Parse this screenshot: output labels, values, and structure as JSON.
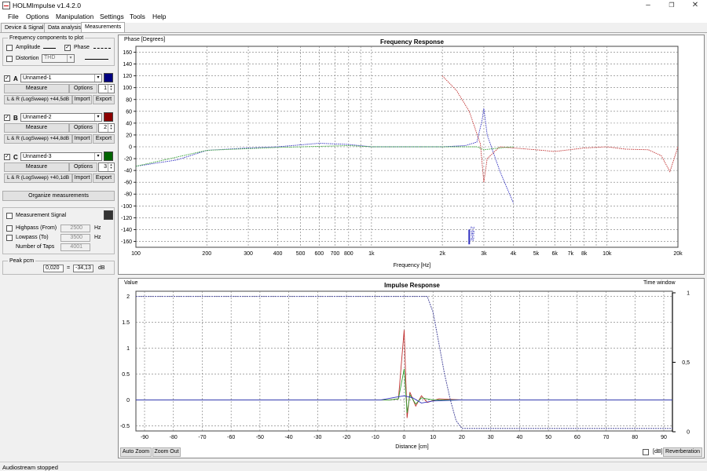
{
  "window": {
    "title": "HOLMImpulse  v1.4.2.0",
    "min": "–",
    "restore": "❐",
    "close": "✕"
  },
  "menu": [
    "File",
    "Options",
    "Manipulation",
    "Settings",
    "Tools",
    "Help"
  ],
  "tabs": [
    "Device & Signal",
    "Data analysis",
    "Measurements"
  ],
  "freq_components": {
    "title": "Frequency components to plot",
    "amplitude": "Amplitude",
    "amplitude_checked": false,
    "phase": "Phase",
    "phase_checked": true,
    "distortion": "Distortion",
    "distortion_checked": false,
    "distortion_value": "THD"
  },
  "measurements": [
    {
      "letter": "A",
      "checked": true,
      "name": "Unnamed-1",
      "color": "#000080",
      "measure": "Measure",
      "options": "Options",
      "spin": "1",
      "info": "L & R (LogSweep) +44,5dB",
      "import": "Import",
      "export": "Export"
    },
    {
      "letter": "B",
      "checked": true,
      "name": "Unnamed-2",
      "color": "#8b0000",
      "measure": "Measure",
      "options": "Options",
      "spin": "2",
      "info": "L & R (LogSweep) +44,8dB",
      "import": "Import",
      "export": "Export"
    },
    {
      "letter": "C",
      "checked": true,
      "name": "Unnamed-3",
      "color": "#006400",
      "measure": "Measure",
      "options": "Options",
      "spin": "3",
      "info": "L & R (LogSweep) +40,1dB",
      "import": "Import",
      "export": "Export"
    }
  ],
  "organize": "Organize measurements",
  "signal": {
    "label": "Measurement Signal",
    "checked": false,
    "color": "#333333",
    "highpass": "Highpass (From)",
    "highpass_value": "2500",
    "highpass_unit": "Hz",
    "lowpass": "Lowpass (To)",
    "lowpass_value": "3500",
    "lowpass_unit": "Hz",
    "taps": "Number of Taps",
    "taps_value": "4001"
  },
  "peak": {
    "label": "Peak pcm",
    "value": "0,020",
    "eq": "=",
    "db": "-34,13",
    "unit": "dB"
  },
  "freq_chart": {
    "title": "Frequency Response",
    "ylabel": "Phase [Degrees]",
    "xlabel": "Frequency [Hz]",
    "yticks": [
      "160",
      "140",
      "120",
      "100",
      "80",
      "60",
      "40",
      "20",
      "0",
      "-20",
      "-40",
      "-60",
      "-80",
      "-100",
      "-120",
      "-140",
      "-160"
    ],
    "xticks": [
      "100",
      "200",
      "300",
      "400",
      "500",
      "600",
      "700",
      "800",
      "1k",
      "2k",
      "3k",
      "4k",
      "5k",
      "6k",
      "7k",
      "8k",
      "10k",
      "20k"
    ],
    "marker": "2.6kHz"
  },
  "impulse_chart": {
    "title": "Impulse Response",
    "ylabel": "Value",
    "xlabel": "Distance [cm]",
    "time_window": "Time window",
    "yticks": [
      "2",
      "1.5",
      "1",
      "0.5",
      "0",
      "-0.5"
    ],
    "xticks": [
      "-90",
      "-80",
      "-70",
      "-60",
      "-50",
      "-40",
      "-30",
      "-20",
      "-10",
      "0",
      "10",
      "20",
      "30",
      "40",
      "50",
      "60",
      "70",
      "80",
      "90"
    ],
    "rticks": [
      "1",
      "0,5",
      "0"
    ],
    "auto_zoom": "Auto Zoom",
    "zoom_out": "Zoom Out",
    "db_label": "[dB]",
    "db_checked": false,
    "reverberation": "Reverberation"
  },
  "status": "Audiostream stopped",
  "chart_data": [
    {
      "type": "line",
      "title": "Frequency Response",
      "xlabel": "Frequency [Hz]",
      "ylabel": "Phase [Degrees]",
      "xscale": "log",
      "xlim": [
        100,
        20000
      ],
      "ylim": [
        -170,
        170
      ],
      "grid": true,
      "series": [
        {
          "color": "#3030c0",
          "x": [
            100,
            150,
            200,
            300,
            400,
            600,
            800,
            1000,
            1500,
            2000,
            2500,
            2800,
            2950,
            3000,
            3100,
            3500,
            4000
          ],
          "y": [
            -33,
            -22,
            -6,
            -2,
            0,
            6,
            4,
            0,
            0,
            0,
            2,
            8,
            45,
            65,
            20,
            -40,
            -95
          ]
        },
        {
          "color": "#c03030",
          "x": [
            2000,
            2300,
            2600,
            2900,
            3000,
            3100,
            3500,
            4000,
            5000,
            6000,
            8000,
            10000,
            12000,
            15000,
            17000,
            18500,
            20000
          ],
          "y": [
            120,
            95,
            60,
            5,
            -60,
            -20,
            0,
            -2,
            -5,
            -8,
            -2,
            0,
            -4,
            -5,
            -15,
            -42,
            0
          ]
        },
        {
          "color": "#30a030",
          "x": [
            100,
            200,
            400,
            800,
            1000,
            2000,
            2800,
            3000,
            3500,
            4000
          ],
          "y": [
            -33,
            -6,
            -1,
            2,
            0,
            0,
            0,
            -5,
            -2,
            0
          ]
        }
      ]
    },
    {
      "type": "line",
      "title": "Impulse Response",
      "xlabel": "Distance [cm]",
      "ylabel": "Value",
      "xlim": [
        -93,
        93
      ],
      "ylim": [
        -0.6,
        2.1
      ],
      "grid": true,
      "series": [
        {
          "color": "#c03030",
          "x": [
            -93,
            -5,
            -2,
            0,
            1,
            2,
            4,
            6,
            8,
            12,
            20,
            93
          ],
          "y": [
            0,
            0,
            0.02,
            1.35,
            -0.35,
            0.15,
            -0.12,
            0.08,
            -0.05,
            0.02,
            0,
            0
          ]
        },
        {
          "color": "#30a030",
          "x": [
            -93,
            -5,
            -2,
            0,
            1,
            2,
            4,
            6,
            10,
            20,
            93
          ],
          "y": [
            0,
            0,
            0.02,
            0.6,
            -0.25,
            0.1,
            -0.08,
            0.04,
            0,
            0,
            0
          ]
        },
        {
          "color": "#3030c0",
          "x": [
            -93,
            -8,
            -3,
            0,
            3,
            6,
            10,
            20,
            93
          ],
          "y": [
            0,
            0,
            0.05,
            0.08,
            0.04,
            -0.06,
            -0.02,
            0,
            0
          ]
        },
        {
          "color": "#5050a0",
          "x": [
            -93,
            8,
            10,
            12,
            14,
            16,
            18,
            20,
            93
          ],
          "y": [
            2.0,
            2.0,
            1.7,
            1.1,
            0.5,
            0,
            -0.4,
            -0.55,
            -0.55
          ]
        }
      ]
    }
  ]
}
